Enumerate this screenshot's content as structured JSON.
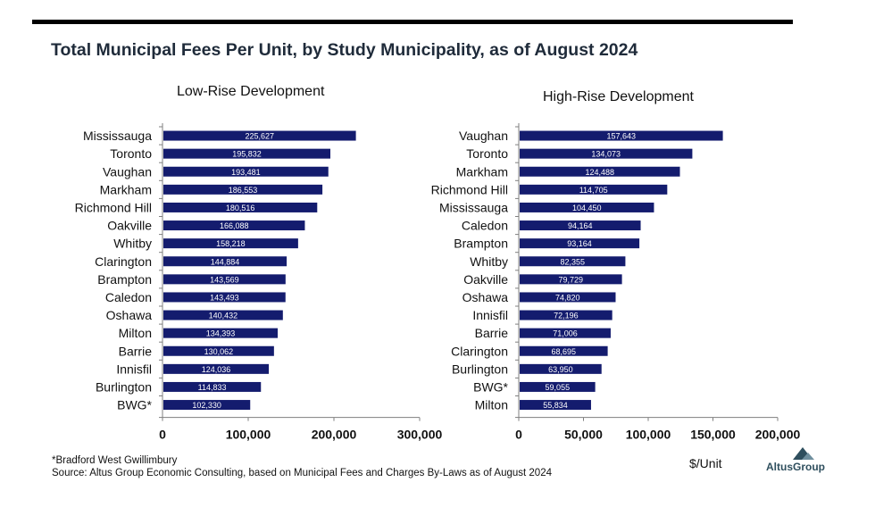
{
  "title": "Total Municipal Fees Per Unit, by Study Municipality, as of August 2024",
  "chart_data": [
    {
      "type": "bar",
      "orientation": "horizontal",
      "title": "Low-Rise Development",
      "categories": [
        "Mississauga",
        "Toronto",
        "Vaughan",
        "Markham",
        "Richmond Hill",
        "Oakville",
        "Whitby",
        "Clarington",
        "Brampton",
        "Caledon",
        "Oshawa",
        "Milton",
        "Barrie",
        "Innisfil",
        "Burlington",
        "BWG*"
      ],
      "values": [
        225627,
        195832,
        193481,
        186553,
        180516,
        166088,
        158218,
        144884,
        143569,
        143493,
        140432,
        134393,
        130062,
        124036,
        114833,
        102330
      ],
      "value_labels": [
        "225,627",
        "195,832",
        "193,481",
        "186,553",
        "180,516",
        "166,088",
        "158,218",
        "144,884",
        "143,569",
        "143,493",
        "140,432",
        "134,393",
        "130,062",
        "124,036",
        "114,833",
        "102,330"
      ],
      "xlim": [
        0,
        300000
      ],
      "ticks": [
        0,
        100000,
        200000,
        300000
      ],
      "tick_labels": [
        "0",
        "100,000",
        "200,000",
        "300,000"
      ],
      "xlabel": "",
      "bar_color": "#141c6e"
    },
    {
      "type": "bar",
      "orientation": "horizontal",
      "title": "High-Rise Development",
      "categories": [
        "Vaughan",
        "Toronto",
        "Markham",
        "Richmond Hill",
        "Mississauga",
        "Caledon",
        "Brampton",
        "Whitby",
        "Oakville",
        "Oshawa",
        "Innisfil",
        "Barrie",
        "Clarington",
        "Burlington",
        "BWG*",
        "Milton"
      ],
      "values": [
        157643,
        134073,
        124488,
        114705,
        104450,
        94164,
        93164,
        82355,
        79729,
        74820,
        72196,
        71006,
        68695,
        63950,
        59055,
        55834
      ],
      "value_labels": [
        "157,643",
        "134,073",
        "124,488",
        "114,705",
        "104,450",
        "94,164",
        "93,164",
        "82,355",
        "79,729",
        "74,820",
        "72,196",
        "71,006",
        "68,695",
        "63,950",
        "59,055",
        "55,834"
      ],
      "xlim": [
        0,
        200000
      ],
      "ticks": [
        0,
        50000,
        100000,
        150000,
        200000
      ],
      "tick_labels": [
        "0",
        "50,000",
        "100,000",
        "150,000",
        "200,000"
      ],
      "xlabel": "$/Unit",
      "bar_color": "#141c6e"
    }
  ],
  "footnote": "*Bradford West Gwillimbury",
  "source": "Source:  Altus Group Economic Consulting, based on Municipal Fees and Charges By-Laws as of August 2024",
  "logo_text": "AltusGroup",
  "colors": {
    "bar": "#141c6e",
    "title": "#1f2b3a",
    "logo": "#2f4f5e"
  }
}
